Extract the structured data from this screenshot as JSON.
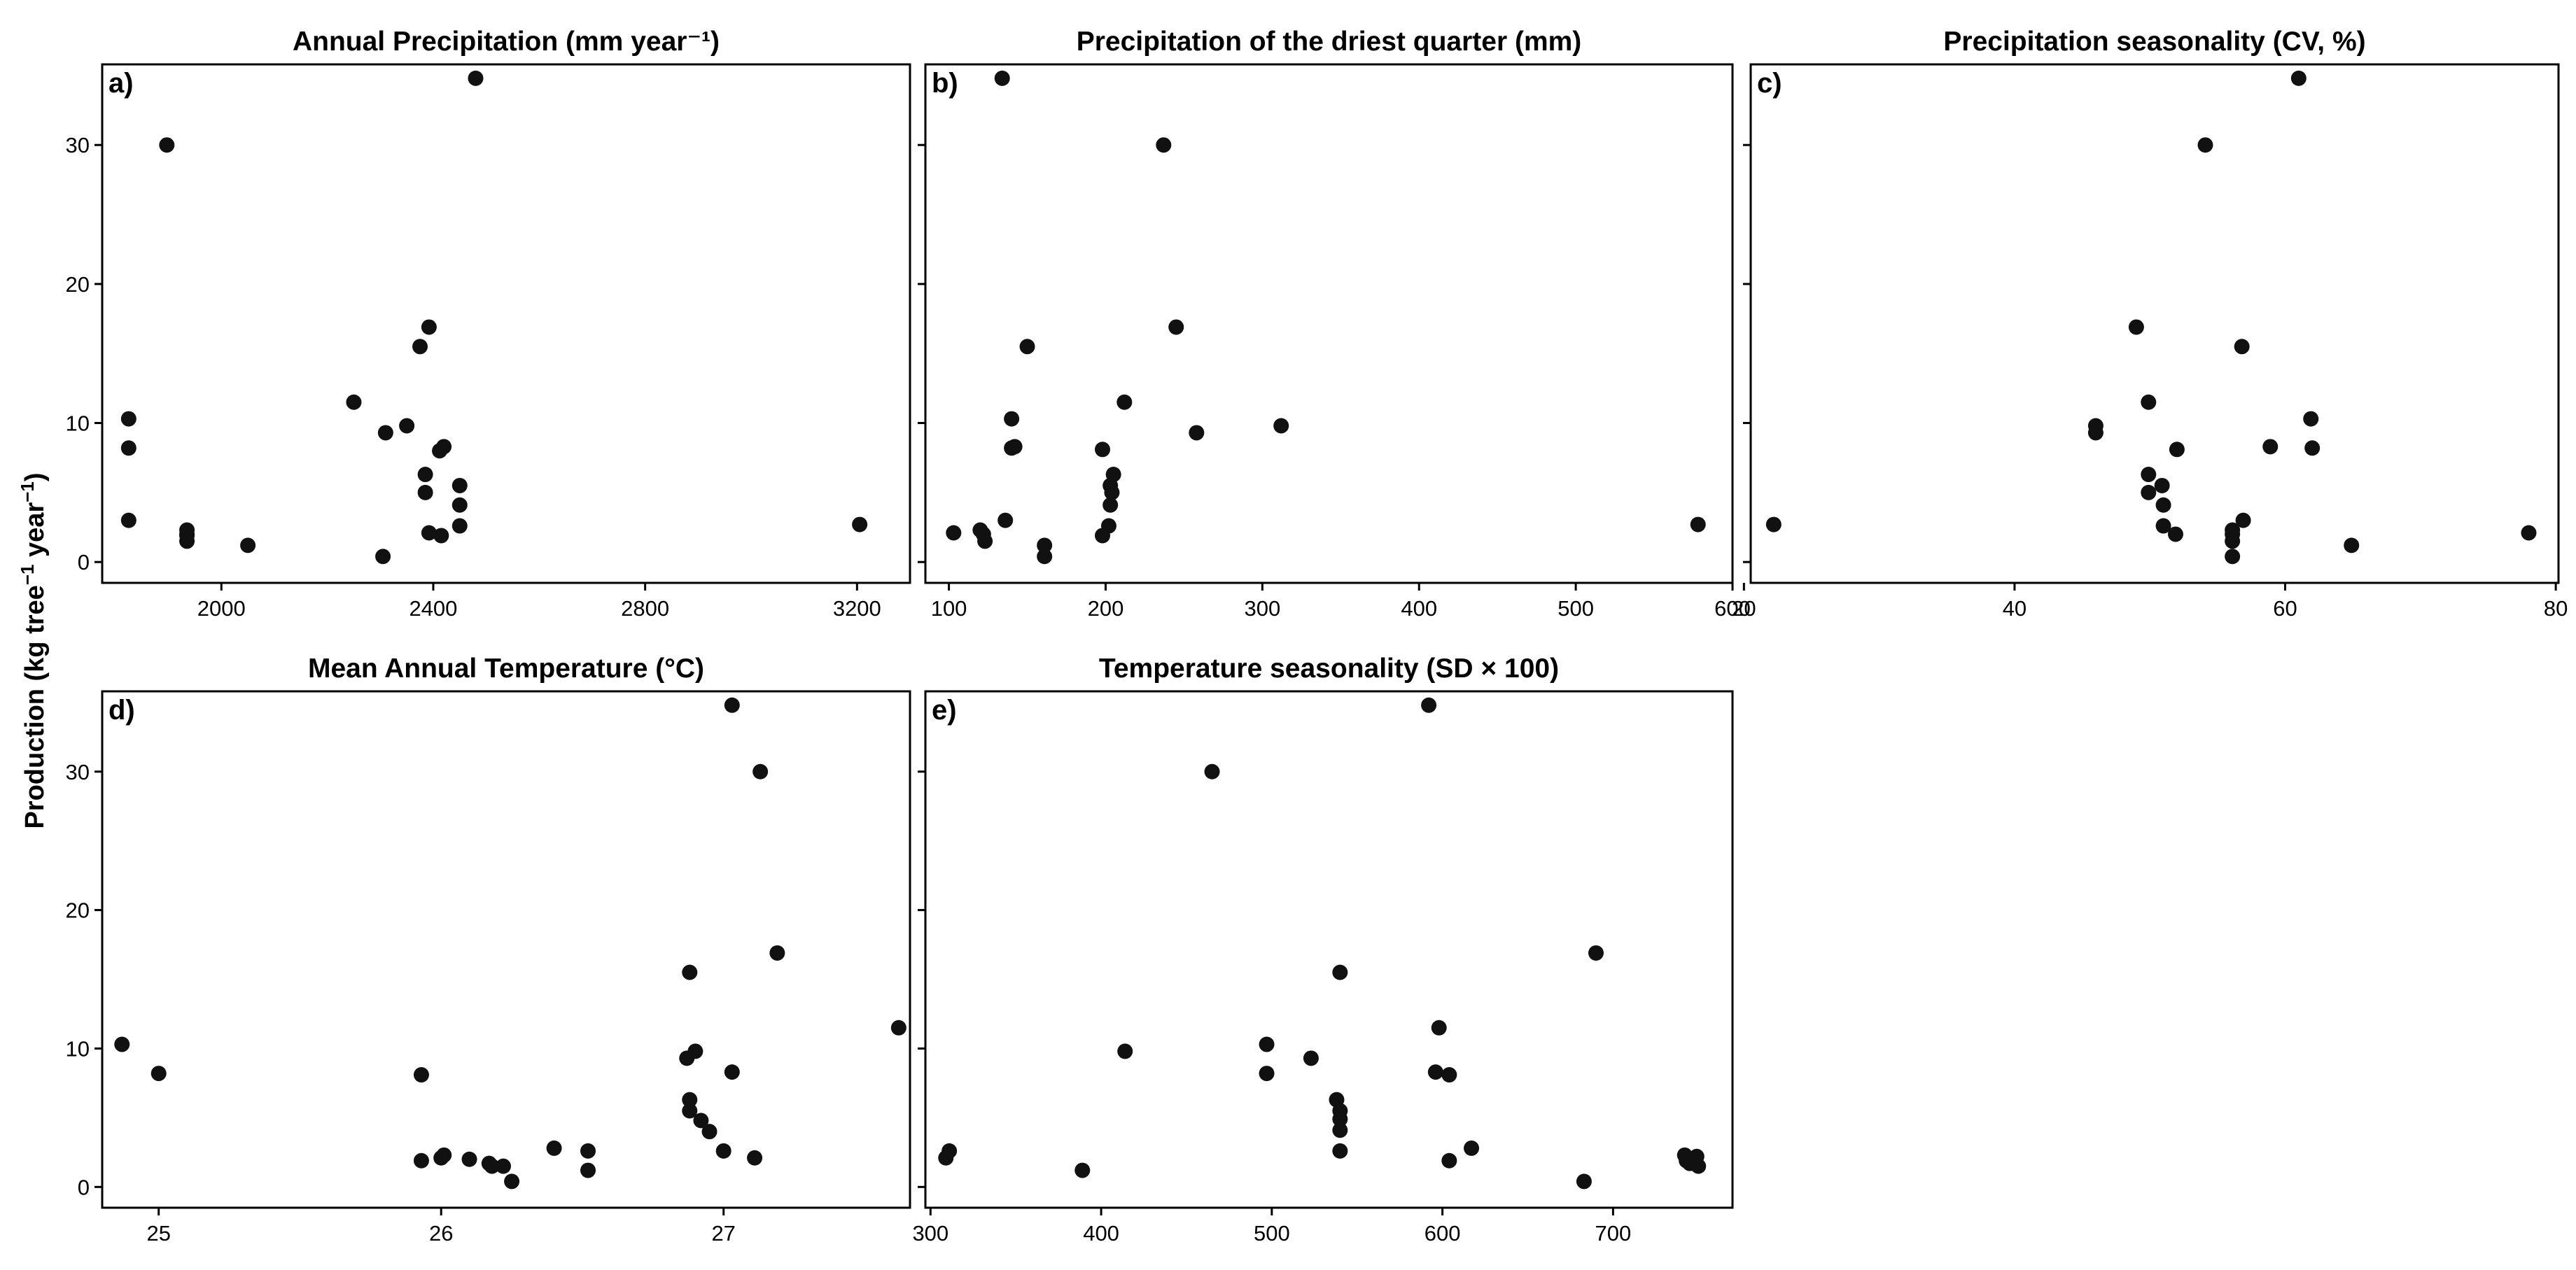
{
  "figure": {
    "ylabel_main": "Production (kg tree",
    "ylabel_sup1": "−1",
    "ylabel_mid": " year",
    "ylabel_sup2": "−1",
    "ylabel_end": ")"
  },
  "chart_data": [
    {
      "type": "scatter",
      "letter": "a)",
      "title": "Annual Precipitation (mm year⁻¹)",
      "xlim": [
        1775,
        3300
      ],
      "ylim": [
        -1.5,
        35.8
      ],
      "xticks": [
        2000,
        2400,
        2800,
        3200
      ],
      "xtick_labels": [
        "2000",
        "2400",
        "2800",
        "3200"
      ],
      "yticks": [
        0,
        10,
        20,
        30
      ],
      "ytick_labels": [
        "0",
        "10",
        "20",
        "30"
      ],
      "show_y": true,
      "points": [
        [
          1825,
          10.3
        ],
        [
          1825,
          8.2
        ],
        [
          1825,
          3.0
        ],
        [
          1897,
          30.0
        ],
        [
          1935,
          2.3
        ],
        [
          1935,
          1.9
        ],
        [
          1935,
          1.5
        ],
        [
          1935,
          2.0
        ],
        [
          2050,
          1.2
        ],
        [
          2250,
          11.5
        ],
        [
          2305,
          0.4
        ],
        [
          2310,
          9.3
        ],
        [
          2350,
          9.8
        ],
        [
          2375,
          15.5
        ],
        [
          2385,
          6.3
        ],
        [
          2385,
          5.0
        ],
        [
          2392,
          16.9
        ],
        [
          2392,
          2.1
        ],
        [
          2412,
          8.0
        ],
        [
          2420,
          8.3
        ],
        [
          2415,
          1.9
        ],
        [
          2450,
          5.5
        ],
        [
          2450,
          4.1
        ],
        [
          2450,
          2.6
        ],
        [
          2480,
          34.8
        ],
        [
          3205,
          2.7
        ]
      ]
    },
    {
      "type": "scatter",
      "letter": "b)",
      "title": "Precipitation of the driest quarter (mm)",
      "xlim": [
        85,
        600
      ],
      "ylim": [
        -1.5,
        35.8
      ],
      "xticks": [
        100,
        200,
        300,
        400,
        500,
        600
      ],
      "xtick_labels": [
        "100",
        "200",
        "300",
        "400",
        "500",
        "600"
      ],
      "yticks": [
        0,
        10,
        20,
        30
      ],
      "ytick_labels": [
        "",
        "",
        "",
        ""
      ],
      "show_y": false,
      "points": [
        [
          103,
          2.1
        ],
        [
          120,
          2.3
        ],
        [
          122,
          2.0
        ],
        [
          123,
          1.5
        ],
        [
          134,
          34.8
        ],
        [
          136,
          3.0
        ],
        [
          140,
          10.3
        ],
        [
          140,
          8.2
        ],
        [
          142,
          8.3
        ],
        [
          150,
          15.5
        ],
        [
          161,
          1.2
        ],
        [
          161,
          0.4
        ],
        [
          198,
          8.1
        ],
        [
          198,
          1.9
        ],
        [
          202,
          2.6
        ],
        [
          203,
          5.5
        ],
        [
          203,
          4.1
        ],
        [
          205,
          6.3
        ],
        [
          204,
          5.0
        ],
        [
          212,
          11.5
        ],
        [
          237,
          30.0
        ],
        [
          245,
          16.9
        ],
        [
          258,
          9.3
        ],
        [
          312,
          9.8
        ],
        [
          578,
          2.7
        ]
      ]
    },
    {
      "type": "scatter",
      "letter": "c)",
      "title": "Precipitation seasonality (CV, %)",
      "xlim": [
        20.5,
        80.2
      ],
      "ylim": [
        -1.5,
        35.8
      ],
      "xticks": [
        20,
        40,
        60,
        80
      ],
      "xtick_labels": [
        "20",
        "40",
        "60",
        "80"
      ],
      "yticks": [
        0,
        10,
        20,
        30
      ],
      "ytick_labels": [
        "",
        "",
        "",
        ""
      ],
      "show_y": false,
      "points": [
        [
          22.2,
          2.7
        ],
        [
          46.0,
          9.8
        ],
        [
          46.0,
          9.3
        ],
        [
          49.0,
          16.9
        ],
        [
          49.9,
          11.5
        ],
        [
          49.9,
          6.3
        ],
        [
          49.9,
          5.0
        ],
        [
          50.9,
          5.5
        ],
        [
          51.0,
          4.1
        ],
        [
          51.0,
          2.6
        ],
        [
          51.9,
          2.0
        ],
        [
          52.0,
          8.1
        ],
        [
          54.1,
          30.0
        ],
        [
          56.1,
          2.3
        ],
        [
          56.1,
          2.0
        ],
        [
          56.1,
          1.5
        ],
        [
          56.1,
          0.4
        ],
        [
          56.8,
          15.5
        ],
        [
          56.9,
          3.0
        ],
        [
          58.9,
          8.3
        ],
        [
          61.0,
          34.8
        ],
        [
          61.9,
          10.3
        ],
        [
          62.0,
          8.2
        ],
        [
          64.9,
          1.2
        ],
        [
          78.0,
          2.1
        ]
      ]
    },
    {
      "type": "scatter",
      "letter": "d)",
      "title": "Mean Annual Temperature (°C)",
      "xlim": [
        24.8,
        27.66
      ],
      "ylim": [
        -1.5,
        35.8
      ],
      "xticks": [
        25,
        26,
        27
      ],
      "xtick_labels": [
        "25",
        "26",
        "27"
      ],
      "yticks": [
        0,
        10,
        20,
        30
      ],
      "ytick_labels": [
        "0",
        "10",
        "20",
        "30"
      ],
      "show_y": true,
      "points": [
        [
          24.87,
          10.3
        ],
        [
          25.0,
          8.2
        ],
        [
          25.93,
          8.1
        ],
        [
          25.93,
          1.9
        ],
        [
          26.0,
          2.1
        ],
        [
          26.01,
          2.3
        ],
        [
          26.1,
          2.0
        ],
        [
          26.17,
          1.7
        ],
        [
          26.18,
          1.5
        ],
        [
          26.22,
          1.5
        ],
        [
          26.25,
          0.4
        ],
        [
          26.4,
          2.8
        ],
        [
          26.52,
          2.6
        ],
        [
          26.52,
          1.2
        ],
        [
          26.87,
          9.3
        ],
        [
          26.88,
          15.5
        ],
        [
          26.88,
          6.3
        ],
        [
          26.88,
          5.5
        ],
        [
          26.9,
          9.8
        ],
        [
          26.92,
          4.8
        ],
        [
          26.95,
          4.0
        ],
        [
          27.0,
          2.6
        ],
        [
          27.03,
          34.8
        ],
        [
          27.03,
          8.3
        ],
        [
          27.11,
          2.1
        ],
        [
          27.13,
          30.0
        ],
        [
          27.19,
          16.9
        ],
        [
          27.62,
          11.5
        ]
      ]
    },
    {
      "type": "scatter",
      "letter": "e)",
      "title": "Temperature seasonality (SD × 100)",
      "xlim": [
        297,
        770
      ],
      "ylim": [
        -1.5,
        35.8
      ],
      "xticks": [
        300,
        400,
        500,
        600,
        700
      ],
      "xtick_labels": [
        "300",
        "400",
        "500",
        "600",
        "700"
      ],
      "yticks": [
        0,
        10,
        20,
        30
      ],
      "ytick_labels": [
        "",
        "",
        "",
        ""
      ],
      "show_y": false,
      "points": [
        [
          309,
          2.1
        ],
        [
          311,
          2.6
        ],
        [
          389,
          1.2
        ],
        [
          414,
          9.8
        ],
        [
          465,
          30.0
        ],
        [
          497,
          10.3
        ],
        [
          497,
          8.2
        ],
        [
          523,
          9.3
        ],
        [
          538,
          6.3
        ],
        [
          540,
          15.5
        ],
        [
          540,
          5.5
        ],
        [
          540,
          4.9
        ],
        [
          540,
          4.1
        ],
        [
          540,
          2.6
        ],
        [
          592,
          34.8
        ],
        [
          596,
          8.3
        ],
        [
          598,
          11.5
        ],
        [
          604,
          8.1
        ],
        [
          604,
          1.9
        ],
        [
          617,
          2.8
        ],
        [
          683,
          0.4
        ],
        [
          690,
          16.9
        ],
        [
          742,
          2.3
        ],
        [
          743,
          1.9
        ],
        [
          745,
          1.7
        ],
        [
          749,
          2.2
        ],
        [
          750,
          1.5
        ]
      ]
    }
  ]
}
